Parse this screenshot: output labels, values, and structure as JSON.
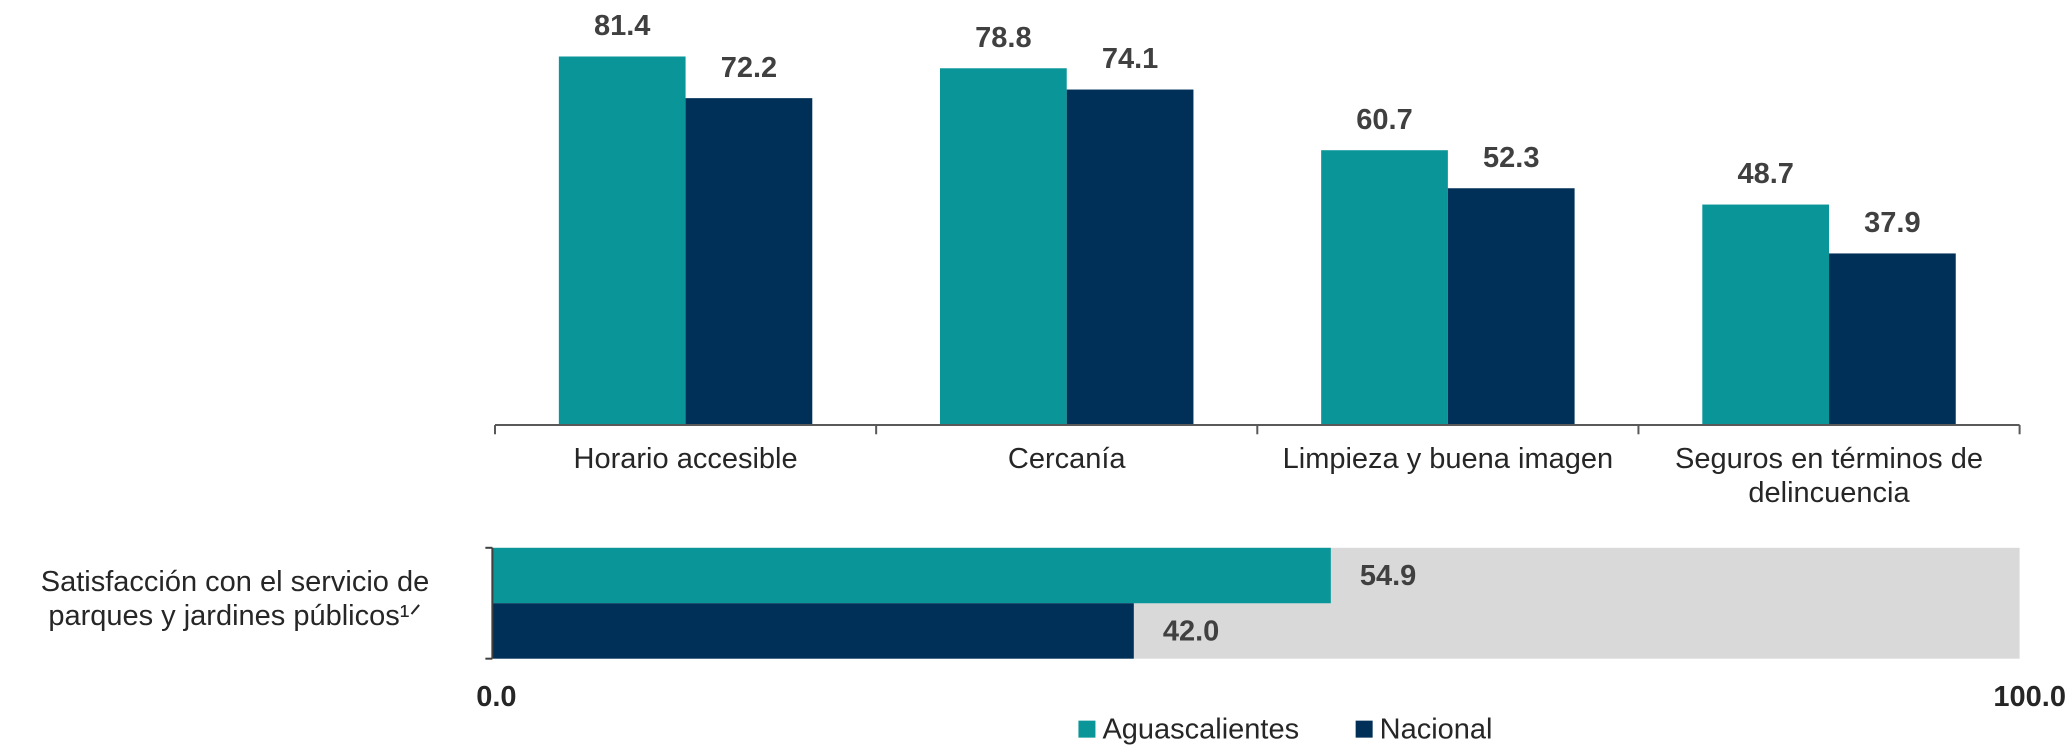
{
  "chart_data": [
    {
      "type": "bar",
      "categories": [
        "Horario accesible",
        "Cercanía",
        "Limpieza y buena imagen",
        "Seguros en términos de delincuencia"
      ],
      "series": [
        {
          "name": "Aguascalientes",
          "color": "#0a9699",
          "values": [
            81.4,
            78.8,
            60.7,
            48.7
          ]
        },
        {
          "name": "Nacional",
          "color": "#003057",
          "values": [
            72.2,
            74.1,
            52.3,
            37.9
          ]
        }
      ],
      "ylim": [
        0,
        85
      ]
    },
    {
      "type": "hbar",
      "categories": [
        "Satisfacción con el servicio de parques y jardines públicos¹ᐟ"
      ],
      "series": [
        {
          "name": "Aguascalientes",
          "color": "#0a9699",
          "values": [
            54.9
          ],
          "value_labels": [
            "54.9"
          ]
        },
        {
          "name": "Nacional",
          "color": "#003057",
          "values": [
            42.0
          ],
          "value_labels": [
            "42.0"
          ]
        }
      ],
      "xlim": [
        0,
        100
      ],
      "xticks": [
        {
          "value": 0,
          "label": "0.0"
        },
        {
          "value": 100,
          "label": "100.0"
        }
      ],
      "track_color": "#d9d9d9",
      "legend": "bottom"
    }
  ]
}
